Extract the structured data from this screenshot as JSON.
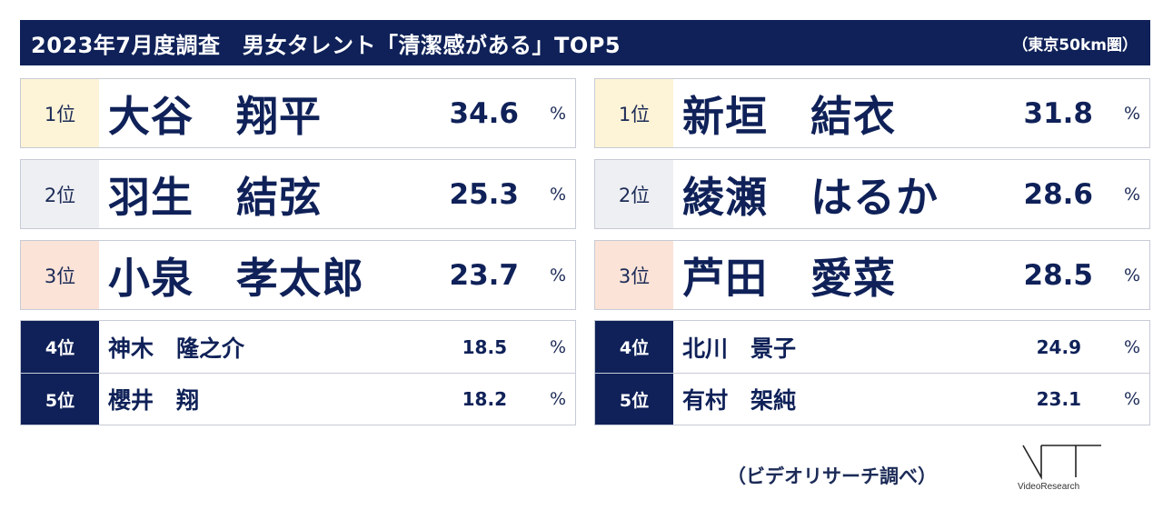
{
  "header": {
    "title": "2023年7月度調査　男女タレント「清潔感がある」TOP5",
    "region": "（東京50km圏）"
  },
  "unit": "%",
  "male": {
    "top3": [
      {
        "rank": "1位",
        "name": "大谷　翔平",
        "value": "34.6"
      },
      {
        "rank": "2位",
        "name": "羽生　結弦",
        "value": "25.3"
      },
      {
        "rank": "3位",
        "name": "小泉　孝太郎",
        "value": "23.7"
      }
    ],
    "others": [
      {
        "rank": "4位",
        "name": "神木　隆之介",
        "value": "18.5"
      },
      {
        "rank": "5位",
        "name": "櫻井　翔",
        "value": "18.2"
      }
    ]
  },
  "female": {
    "top3": [
      {
        "rank": "1位",
        "name": "新垣　結衣",
        "value": "31.8"
      },
      {
        "rank": "2位",
        "name": "綾瀬　はるか",
        "value": "28.6"
      },
      {
        "rank": "3位",
        "name": "芦田　愛菜",
        "value": "28.5"
      }
    ],
    "others": [
      {
        "rank": "4位",
        "name": "北川　景子",
        "value": "24.9"
      },
      {
        "rank": "5位",
        "name": "有村　架純",
        "value": "23.1"
      }
    ]
  },
  "source": "（ビデオリサーチ調べ）",
  "logo": {
    "text": "VideoResearch"
  },
  "colors": {
    "navy": "#0f2158",
    "rank1_bg": "#fdf3d6",
    "rank2_bg": "#eeeff2",
    "rank3_bg": "#fbe3d7"
  }
}
